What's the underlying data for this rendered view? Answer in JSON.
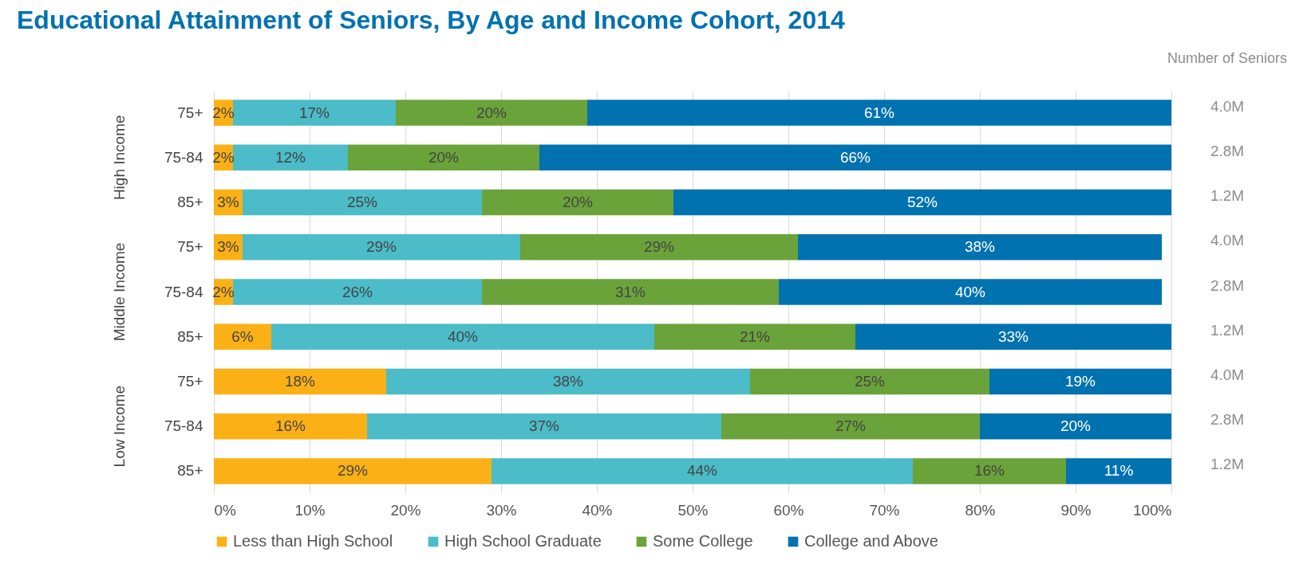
{
  "chart_data": {
    "type": "bar",
    "orientation": "horizontal",
    "stacked": true,
    "title": "Educational Attainment of Seniors, By Age and Income Cohort, 2014",
    "y2label": "Number of Seniors",
    "categories": [
      "75+",
      "75-84",
      "85+",
      "75+",
      "75-84",
      "85+",
      "75+",
      "75-84",
      "85+"
    ],
    "series": [
      {
        "name": "Less than High School",
        "color": "#fbb116",
        "values": [
          2,
          2,
          3,
          3,
          2,
          6,
          18,
          16,
          29
        ],
        "value_labels": [
          "2%",
          "2%",
          "3%",
          "3%",
          "2%",
          "6%",
          "18%",
          "16%",
          "29%"
        ]
      },
      {
        "name": "High School Graduate",
        "color": "#4bbcc8",
        "values": [
          17,
          12,
          25,
          29,
          26,
          40,
          38,
          37,
          44
        ],
        "value_labels": [
          "17%",
          "12%",
          "25%",
          "29%",
          "26%",
          "40%",
          "38%",
          "37%",
          "44%"
        ]
      },
      {
        "name": "Some College",
        "color": "#6aa33a",
        "values": [
          20,
          20,
          20,
          29,
          31,
          21,
          25,
          27,
          16
        ],
        "value_labels": [
          "20%",
          "20%",
          "20%",
          "29%",
          "31%",
          "21%",
          "25%",
          "27%",
          "16%"
        ]
      },
      {
        "name": "College and Above",
        "color": "#0072b0",
        "values": [
          61,
          66,
          52,
          38,
          40,
          33,
          19,
          20,
          11
        ],
        "value_labels": [
          "61%",
          "66%",
          "52%",
          "38%",
          "40%",
          "33%",
          "19%",
          "20%",
          "11%"
        ]
      }
    ],
    "annotations": [
      "High Income",
      "Middle Income",
      "Low Income",
      "4.0M",
      "2.8M",
      "1.2M",
      "4.0M",
      "2.8M",
      "1.2M",
      "4.0M",
      "2.8M",
      "1.2M"
    ],
    "xlim": [
      0,
      100
    ],
    "xticks": [
      {
        "value": 0,
        "label": "0%"
      },
      {
        "value": 10,
        "label": "10%"
      },
      {
        "value": 20,
        "label": "20%"
      },
      {
        "value": 30,
        "label": "30%"
      },
      {
        "value": 40,
        "label": "40%"
      },
      {
        "value": 50,
        "label": "50%"
      },
      {
        "value": 60,
        "label": "60%"
      },
      {
        "value": 70,
        "label": "70%"
      },
      {
        "value": 80,
        "label": "80%"
      },
      {
        "value": 90,
        "label": "90%"
      },
      {
        "value": 100,
        "label": "100%"
      }
    ],
    "grid": "x",
    "legend": "bottom"
  }
}
